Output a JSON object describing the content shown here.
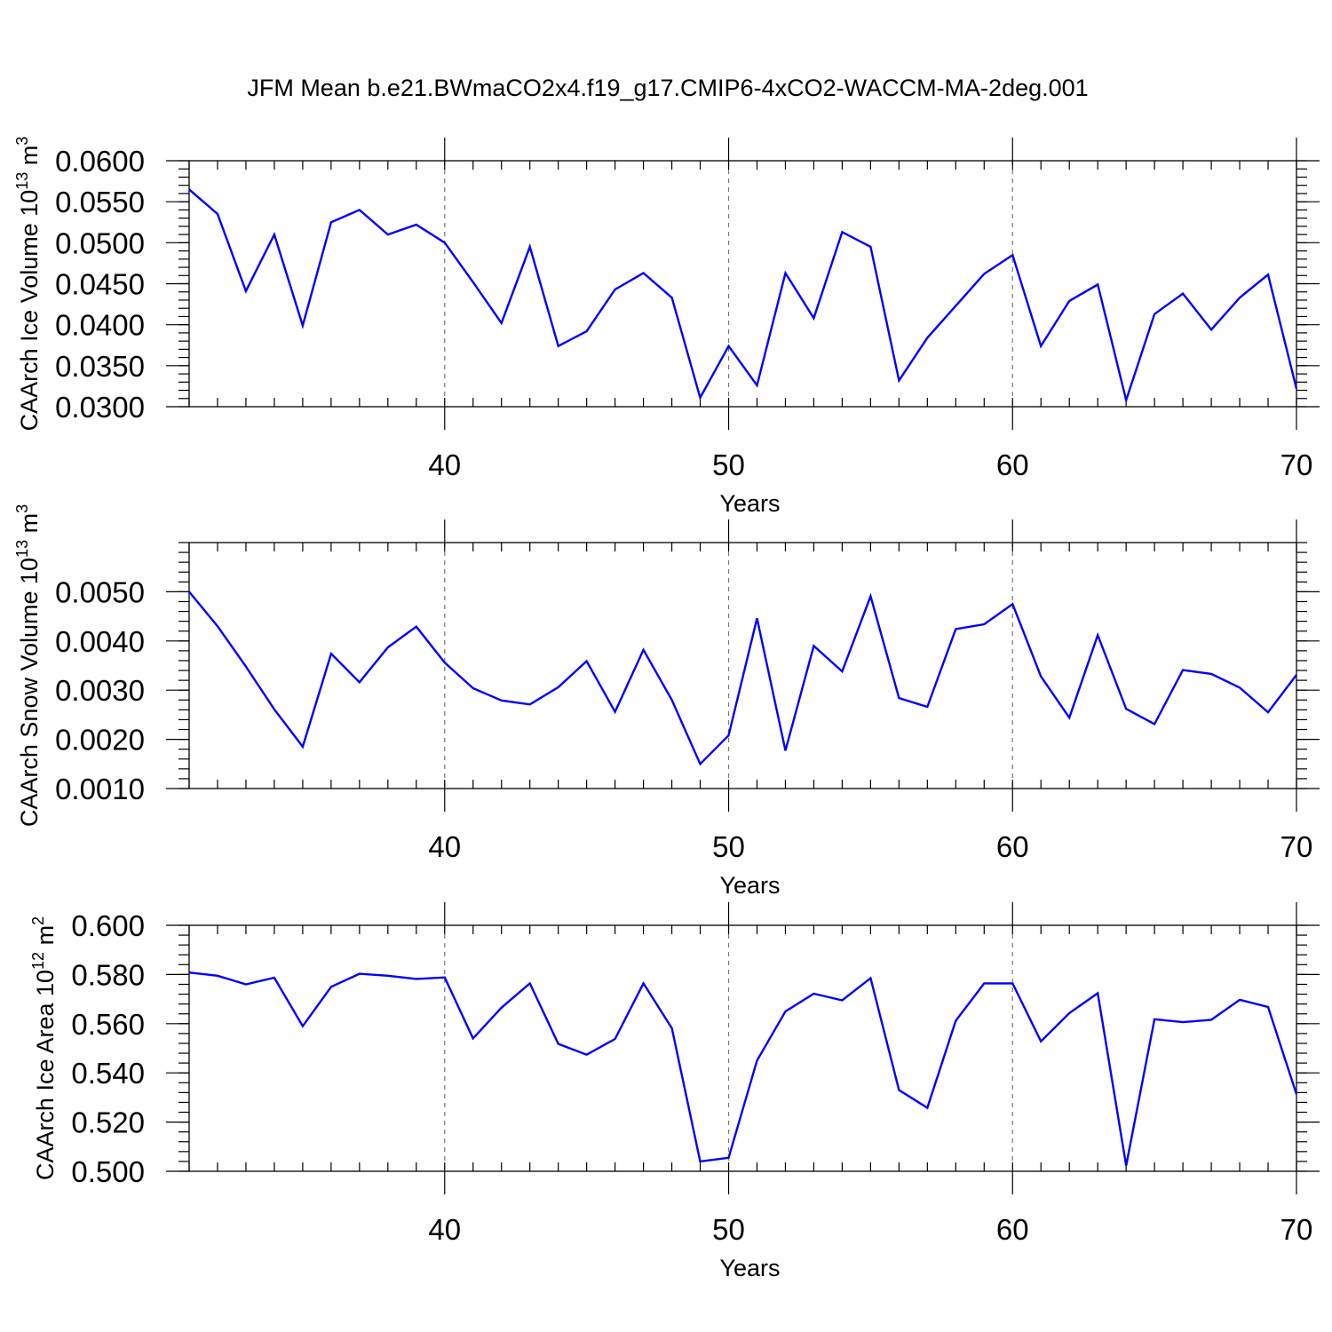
{
  "chart_data": {
    "title": "JFM Mean b.e21.BWmaCO2x4.f19_g17.CMIP6-4xCO2-WACCM-MA-2deg.001",
    "line_color": "#0000ff",
    "panels": [
      {
        "type": "line",
        "ylabel": {
          "text": "CAArch Ice Volume 10",
          "exp1": "13",
          "mid": " m",
          "exp2": "3"
        },
        "xlabel": "Years",
        "xlim": [
          31,
          70
        ],
        "xticks": [
          40,
          50,
          60,
          70
        ],
        "xtick_labels": [
          "40",
          "50",
          "60",
          "70"
        ],
        "ylim": [
          0.03,
          0.06
        ],
        "yticks": [
          0.03,
          0.035,
          0.04,
          0.045,
          0.05,
          0.055,
          0.06
        ],
        "ytick_labels": [
          "0.0300",
          "0.0350",
          "0.0400",
          "0.0450",
          "0.0500",
          "0.0550",
          "0.0600"
        ],
        "grid_x": [
          40,
          50,
          60
        ],
        "x": [
          31,
          32,
          33,
          34,
          35,
          36,
          37,
          38,
          39,
          40,
          41,
          42,
          43,
          44,
          45,
          46,
          47,
          48,
          49,
          50,
          51,
          52,
          53,
          54,
          55,
          56,
          57,
          58,
          59,
          60,
          61,
          62,
          63,
          64,
          65,
          66,
          67,
          68,
          69,
          70
        ],
        "values": [
          0.0565,
          0.0535,
          0.0441,
          0.051,
          0.0399,
          0.0525,
          0.054,
          0.051,
          0.0522,
          0.05,
          0.0452,
          0.0402,
          0.0495,
          0.0374,
          0.0392,
          0.0443,
          0.0463,
          0.0433,
          0.0311,
          0.0374,
          0.0326,
          0.0463,
          0.0408,
          0.0513,
          0.0495,
          0.0332,
          0.0384,
          0.0423,
          0.0462,
          0.0485,
          0.0374,
          0.0429,
          0.0449,
          0.0308,
          0.0413,
          0.0438,
          0.0394,
          0.0433,
          0.0461,
          0.0322
        ]
      },
      {
        "type": "line",
        "ylabel": {
          "text": "CAArch Snow Volume 10",
          "exp1": "13",
          "mid": " m",
          "exp2": "3"
        },
        "xlabel": "Years",
        "xlim": [
          31,
          70
        ],
        "xticks": [
          40,
          50,
          60,
          70
        ],
        "xtick_labels": [
          "40",
          "50",
          "60",
          "70"
        ],
        "ylim": [
          0.001,
          0.006
        ],
        "yticks": [
          0.001,
          0.002,
          0.003,
          0.004,
          0.005
        ],
        "ytick_labels": [
          "0.0010",
          "0.0020",
          "0.0030",
          "0.0040",
          "0.0050"
        ],
        "grid_x": [
          40,
          50,
          60
        ],
        "x": [
          31,
          32,
          33,
          34,
          35,
          36,
          37,
          38,
          39,
          40,
          41,
          42,
          43,
          44,
          45,
          46,
          47,
          48,
          49,
          50,
          51,
          52,
          53,
          54,
          55,
          56,
          57,
          58,
          59,
          60,
          61,
          62,
          63,
          64,
          65,
          66,
          67,
          68,
          69,
          70
        ],
        "values": [
          0.005,
          0.0043,
          0.00348,
          0.00261,
          0.00185,
          0.00374,
          0.00316,
          0.00387,
          0.00429,
          0.00356,
          0.00304,
          0.00279,
          0.00271,
          0.00306,
          0.00359,
          0.00256,
          0.00382,
          0.0028,
          0.0015,
          0.00208,
          0.00446,
          0.00177,
          0.0039,
          0.00338,
          0.00491,
          0.00284,
          0.00266,
          0.00424,
          0.00434,
          0.00475,
          0.00328,
          0.00244,
          0.00412,
          0.00262,
          0.00231,
          0.00341,
          0.00333,
          0.00305,
          0.00255,
          0.00331
        ]
      },
      {
        "type": "line",
        "ylabel": {
          "text": "CAArch Ice Area 10",
          "exp1": "12",
          "mid": " m",
          "exp2": "2"
        },
        "xlabel": "Years",
        "xlim": [
          31,
          70
        ],
        "xticks": [
          40,
          50,
          60,
          70
        ],
        "xtick_labels": [
          "40",
          "50",
          "60",
          "70"
        ],
        "ylim": [
          0.5,
          0.6
        ],
        "yticks": [
          0.5,
          0.52,
          0.54,
          0.56,
          0.58,
          0.6
        ],
        "ytick_labels": [
          "0.500",
          "0.520",
          "0.540",
          "0.560",
          "0.580",
          "0.600"
        ],
        "grid_x": [
          40,
          50,
          60
        ],
        "x": [
          31,
          32,
          33,
          34,
          35,
          36,
          37,
          38,
          39,
          40,
          41,
          42,
          43,
          44,
          45,
          46,
          47,
          48,
          49,
          50,
          51,
          52,
          53,
          54,
          55,
          56,
          57,
          58,
          59,
          60,
          61,
          62,
          63,
          64,
          65,
          66,
          67,
          68,
          69,
          70
        ],
        "values": [
          0.5808,
          0.5795,
          0.576,
          0.5787,
          0.559,
          0.575,
          0.5803,
          0.5795,
          0.5782,
          0.5788,
          0.554,
          0.5665,
          0.5764,
          0.5518,
          0.5474,
          0.5538,
          0.5764,
          0.5582,
          0.504,
          0.5055,
          0.545,
          0.565,
          0.5722,
          0.5695,
          0.5785,
          0.533,
          0.5258,
          0.5612,
          0.5764,
          0.5764,
          0.5528,
          0.5643,
          0.5724,
          0.5023,
          0.5618,
          0.5606,
          0.5616,
          0.5697,
          0.5668,
          0.5313
        ]
      }
    ]
  }
}
